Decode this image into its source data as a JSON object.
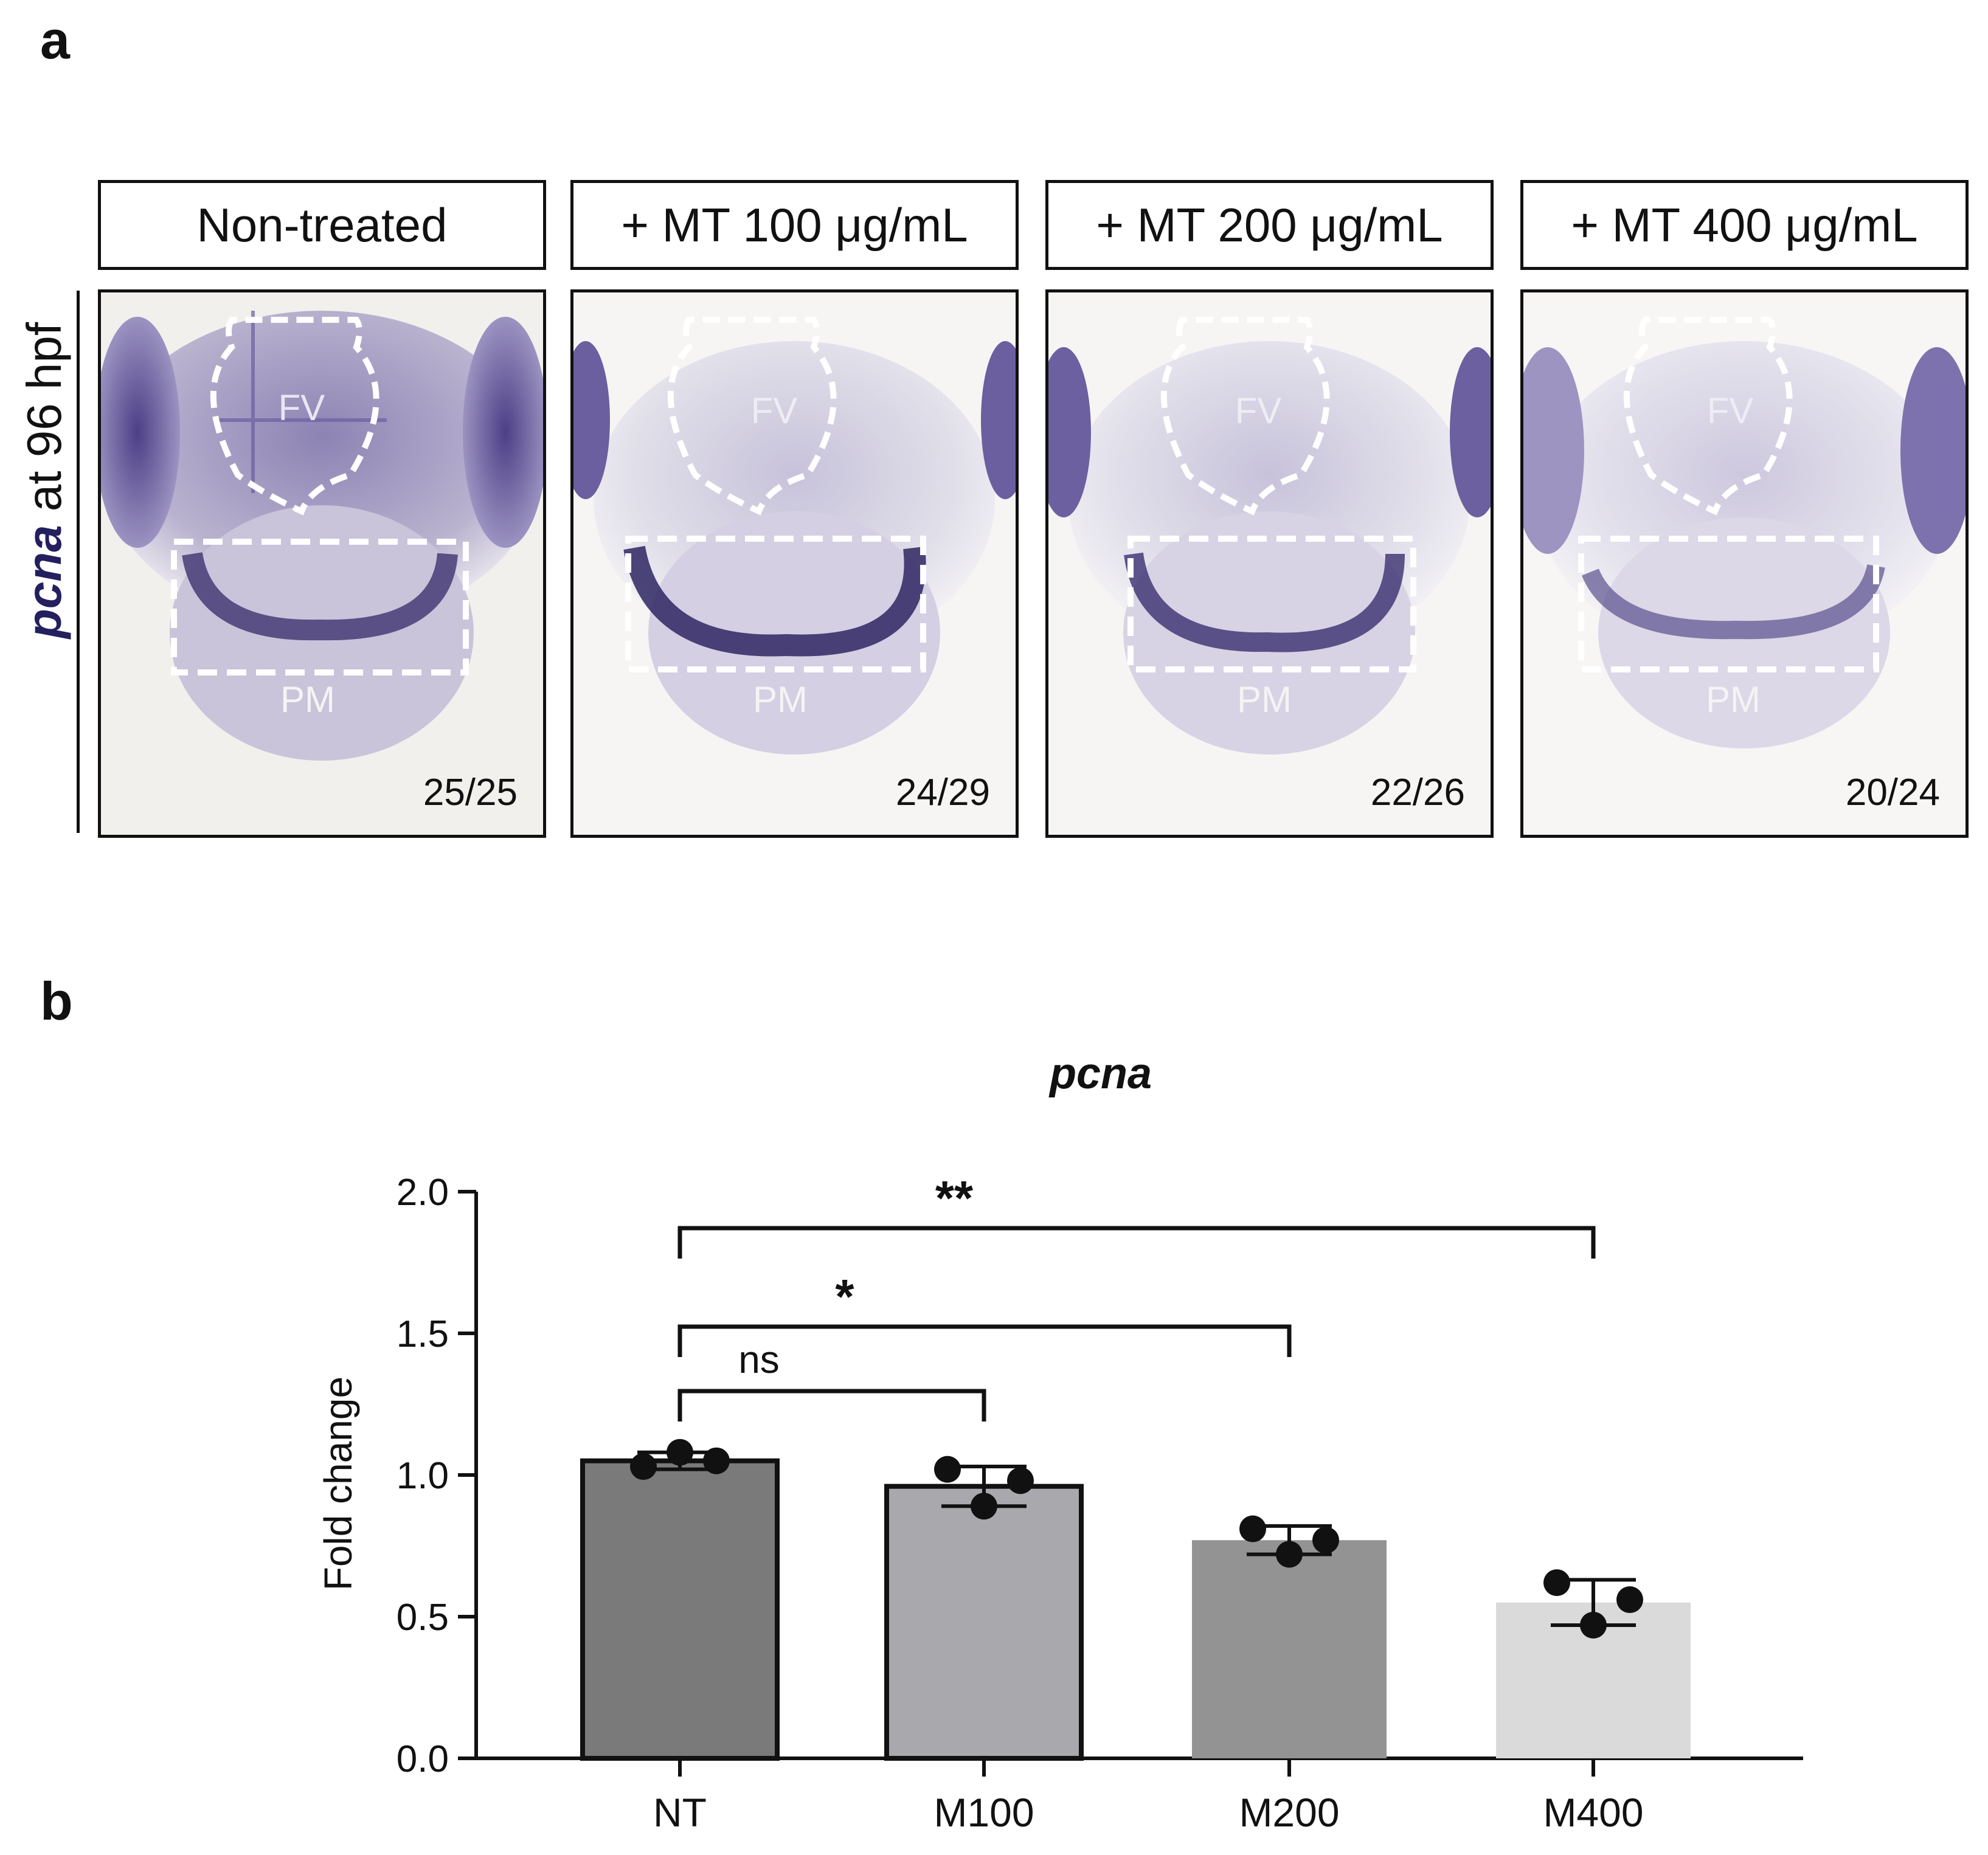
{
  "panel_a": {
    "letter": "a",
    "row_label_gene": "pcna",
    "row_label_rest": " at 96 hpf",
    "columns": [
      {
        "header": "Non-treated",
        "count": "25/25"
      },
      {
        "header": "+ MT 100 μg/mL",
        "count": "24/29"
      },
      {
        "header": "+ MT 200 μg/mL",
        "count": "22/26"
      },
      {
        "header": "+ MT 400 μg/mL",
        "count": "20/24"
      }
    ],
    "region_labels": {
      "top": "FV",
      "bottom": "PM"
    }
  },
  "panel_b": {
    "letter": "b"
  },
  "chart_data": {
    "type": "bar",
    "title": "pcna",
    "xlabel": "",
    "ylabel": "Fold change",
    "ylim": [
      0,
      2.0
    ],
    "yticks": [
      "0.0",
      "0.5",
      "1.0",
      "1.5",
      "2.0"
    ],
    "categories": [
      "NT",
      "M100",
      "M200",
      "M400"
    ],
    "values": [
      1.05,
      0.96,
      0.77,
      0.55
    ],
    "errors": [
      0.03,
      0.07,
      0.05,
      0.08
    ],
    "points": [
      [
        1.03,
        1.08,
        1.05
      ],
      [
        1.02,
        0.89,
        0.98
      ],
      [
        0.81,
        0.72,
        0.77
      ],
      [
        0.62,
        0.47,
        0.56
      ]
    ],
    "bar_colors": [
      "#7a7a7a",
      "#a9a9ad",
      "#939393",
      "#dadada"
    ],
    "bar_outline": [
      true,
      true,
      false,
      false
    ],
    "comparisons": [
      {
        "from": "NT",
        "to": "M100",
        "label": "ns"
      },
      {
        "from": "NT",
        "to": "M200",
        "label": "*"
      },
      {
        "from": "NT",
        "to": "M400",
        "label": "**"
      }
    ],
    "grid": false,
    "legend": "none"
  }
}
